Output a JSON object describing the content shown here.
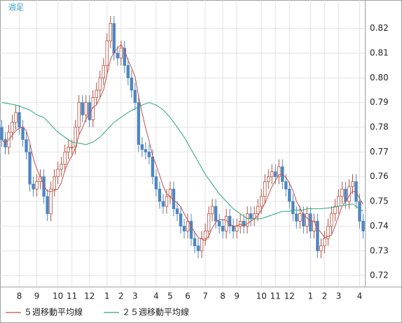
{
  "chart_data": {
    "type": "candlestick",
    "title": "週足",
    "categories": [
      null,
      null,
      null,
      null,
      null,
      "8",
      null,
      null,
      null,
      null,
      "9",
      null,
      null,
      null,
      null,
      null,
      "10",
      null,
      null,
      null,
      "11",
      null,
      null,
      null,
      null,
      "12",
      null,
      null,
      null,
      null,
      "1",
      null,
      null,
      null,
      "2",
      null,
      null,
      null,
      "3",
      null,
      null,
      null,
      null,
      null,
      "4",
      null,
      null,
      null,
      "5",
      null,
      null,
      null,
      null,
      "6",
      null,
      null,
      null,
      null,
      "7",
      null,
      null,
      null,
      null,
      "8",
      null,
      null,
      null,
      "9",
      null,
      null,
      null,
      null,
      null,
      null,
      "10",
      null,
      null,
      null,
      "11",
      null,
      null,
      null,
      "12",
      null,
      null,
      null,
      null,
      null,
      "1",
      null,
      null,
      null,
      "2",
      null,
      null,
      null,
      "3",
      null,
      null,
      null,
      null,
      null,
      "4",
      null
    ],
    "open": [
      0.78,
      0.775,
      0.772,
      0.778,
      0.782,
      0.786,
      0.78,
      0.775,
      0.77,
      0.757,
      0.755,
      0.758,
      0.76,
      0.752,
      0.745,
      0.755,
      0.76,
      0.763,
      0.765,
      0.77,
      0.772,
      0.772,
      0.78,
      0.79,
      0.785,
      0.79,
      0.783,
      0.792,
      0.795,
      0.8,
      0.805,
      0.815,
      0.822,
      0.81,
      0.808,
      0.812,
      0.805,
      0.8,
      0.795,
      0.79,
      0.773,
      0.771,
      0.77,
      0.768,
      0.76,
      0.755,
      0.75,
      0.748,
      0.752,
      0.755,
      0.747,
      0.745,
      0.74,
      0.738,
      0.742,
      0.735,
      0.732,
      0.73,
      0.735,
      0.738,
      0.745,
      0.748,
      0.742,
      0.74,
      0.738,
      0.744,
      0.74,
      0.738,
      0.74,
      0.742,
      0.74,
      0.745,
      0.743,
      0.745,
      0.748,
      0.752,
      0.758,
      0.76,
      0.762,
      0.76,
      0.764,
      0.758,
      0.755,
      0.75,
      0.745,
      0.742,
      0.745,
      0.74,
      0.745,
      0.738,
      0.742,
      0.73,
      0.732,
      0.735,
      0.74,
      0.745,
      0.748,
      0.752,
      0.755,
      0.75,
      0.756,
      0.758,
      0.75,
      0.742
    ],
    "high": [
      0.783,
      0.778,
      0.781,
      0.785,
      0.789,
      0.789,
      0.783,
      0.778,
      0.773,
      0.76,
      0.761,
      0.763,
      0.763,
      0.755,
      0.758,
      0.763,
      0.766,
      0.768,
      0.773,
      0.775,
      0.775,
      0.783,
      0.793,
      0.793,
      0.793,
      0.793,
      0.795,
      0.798,
      0.803,
      0.808,
      0.818,
      0.825,
      0.825,
      0.813,
      0.815,
      0.815,
      0.808,
      0.803,
      0.798,
      0.793,
      0.776,
      0.774,
      0.773,
      0.771,
      0.763,
      0.758,
      0.753,
      0.755,
      0.758,
      0.758,
      0.75,
      0.748,
      0.743,
      0.745,
      0.745,
      0.738,
      0.735,
      0.738,
      0.741,
      0.748,
      0.751,
      0.751,
      0.745,
      0.743,
      0.747,
      0.747,
      0.743,
      0.743,
      0.745,
      0.745,
      0.748,
      0.748,
      0.748,
      0.751,
      0.755,
      0.761,
      0.763,
      0.765,
      0.765,
      0.767,
      0.767,
      0.761,
      0.758,
      0.753,
      0.748,
      0.748,
      0.748,
      0.748,
      0.748,
      0.745,
      0.745,
      0.735,
      0.738,
      0.743,
      0.748,
      0.751,
      0.755,
      0.758,
      0.758,
      0.759,
      0.761,
      0.761,
      0.753,
      0.745
    ],
    "low": [
      0.772,
      0.769,
      0.769,
      0.775,
      0.779,
      0.777,
      0.772,
      0.767,
      0.754,
      0.752,
      0.752,
      0.755,
      0.749,
      0.742,
      0.742,
      0.752,
      0.757,
      0.76,
      0.762,
      0.767,
      0.769,
      0.769,
      0.777,
      0.782,
      0.782,
      0.78,
      0.78,
      0.789,
      0.792,
      0.797,
      0.802,
      0.812,
      0.807,
      0.805,
      0.805,
      0.802,
      0.797,
      0.792,
      0.787,
      0.77,
      0.768,
      0.767,
      0.765,
      0.757,
      0.752,
      0.747,
      0.745,
      0.745,
      0.749,
      0.744,
      0.742,
      0.737,
      0.735,
      0.735,
      0.732,
      0.729,
      0.727,
      0.727,
      0.732,
      0.735,
      0.742,
      0.739,
      0.737,
      0.735,
      0.735,
      0.737,
      0.735,
      0.735,
      0.737,
      0.737,
      0.737,
      0.74,
      0.74,
      0.742,
      0.745,
      0.749,
      0.755,
      0.757,
      0.757,
      0.757,
      0.755,
      0.752,
      0.747,
      0.742,
      0.739,
      0.739,
      0.737,
      0.737,
      0.735,
      0.735,
      0.727,
      0.727,
      0.729,
      0.732,
      0.737,
      0.742,
      0.745,
      0.749,
      0.747,
      0.747,
      0.753,
      0.747,
      0.739,
      0.735
    ],
    "close": [
      0.775,
      0.772,
      0.778,
      0.782,
      0.786,
      0.78,
      0.775,
      0.77,
      0.757,
      0.755,
      0.758,
      0.76,
      0.752,
      0.745,
      0.755,
      0.76,
      0.763,
      0.765,
      0.77,
      0.772,
      0.772,
      0.78,
      0.79,
      0.785,
      0.79,
      0.783,
      0.792,
      0.795,
      0.8,
      0.805,
      0.815,
      0.822,
      0.81,
      0.808,
      0.812,
      0.805,
      0.8,
      0.795,
      0.79,
      0.773,
      0.771,
      0.77,
      0.768,
      0.76,
      0.755,
      0.75,
      0.748,
      0.752,
      0.755,
      0.747,
      0.745,
      0.74,
      0.738,
      0.742,
      0.735,
      0.732,
      0.73,
      0.735,
      0.738,
      0.745,
      0.748,
      0.742,
      0.74,
      0.738,
      0.744,
      0.74,
      0.738,
      0.74,
      0.742,
      0.74,
      0.745,
      0.743,
      0.745,
      0.748,
      0.752,
      0.758,
      0.76,
      0.762,
      0.76,
      0.764,
      0.758,
      0.755,
      0.75,
      0.745,
      0.742,
      0.745,
      0.74,
      0.745,
      0.738,
      0.742,
      0.73,
      0.732,
      0.735,
      0.74,
      0.745,
      0.748,
      0.752,
      0.755,
      0.75,
      0.756,
      0.758,
      0.75,
      0.742,
      0.738
    ],
    "up_color": "#b2503f",
    "down_color": "#4f86c2",
    "series": [
      {
        "name": "５週移動平均線",
        "color": "#c0504d",
        "values": [
          0.775,
          0.7735,
          0.775,
          0.7768,
          0.7786,
          0.7796,
          0.7802,
          0.7786,
          0.7736,
          0.7674,
          0.763,
          0.76,
          0.7564,
          0.754,
          0.754,
          0.7544,
          0.755,
          0.7576,
          0.7626,
          0.766,
          0.7684,
          0.7718,
          0.7768,
          0.7798,
          0.7834,
          0.7856,
          0.788,
          0.789,
          0.792,
          0.795,
          0.8014,
          0.8074,
          0.8104,
          0.812,
          0.8134,
          0.8114,
          0.807,
          0.804,
          0.8004,
          0.7926,
          0.7858,
          0.7798,
          0.7744,
          0.7684,
          0.7648,
          0.7606,
          0.7562,
          0.753,
          0.752,
          0.7504,
          0.7494,
          0.7478,
          0.745,
          0.7424,
          0.74,
          0.7374,
          0.7354,
          0.7348,
          0.734,
          0.736,
          0.7392,
          0.7416,
          0.7426,
          0.7426,
          0.7424,
          0.7408,
          0.74,
          0.74,
          0.7408,
          0.74,
          0.741,
          0.742,
          0.743,
          0.7442,
          0.7466,
          0.7492,
          0.7526,
          0.756,
          0.7584,
          0.7608,
          0.7608,
          0.7598,
          0.7574,
          0.7544,
          0.75,
          0.7474,
          0.7444,
          0.7434,
          0.742,
          0.742,
          0.739,
          0.7374,
          0.7354,
          0.7358,
          0.7364,
          0.74,
          0.744,
          0.748,
          0.75,
          0.7522,
          0.7542,
          0.7538,
          0.7512,
          0.7488
        ]
      },
      {
        "name": "２５週移動平均線",
        "color": "#2aa77a",
        "values": [
          0.79,
          0.7898,
          0.7895,
          0.7893,
          0.789,
          0.7885,
          0.788,
          0.7875,
          0.787,
          0.786,
          0.785,
          0.7845,
          0.784,
          0.7825,
          0.781,
          0.7795,
          0.778,
          0.777,
          0.776,
          0.775,
          0.774,
          0.7738,
          0.7735,
          0.7733,
          0.773,
          0.7735,
          0.774,
          0.775,
          0.776,
          0.7775,
          0.779,
          0.7805,
          0.782,
          0.783,
          0.784,
          0.785,
          0.786,
          0.7868,
          0.7875,
          0.7883,
          0.789,
          0.7895,
          0.79,
          0.7895,
          0.789,
          0.788,
          0.787,
          0.7855,
          0.784,
          0.782,
          0.78,
          0.778,
          0.776,
          0.7735,
          0.771,
          0.7685,
          0.766,
          0.7635,
          0.761,
          0.759,
          0.757,
          0.755,
          0.753,
          0.7515,
          0.75,
          0.7485,
          0.747,
          0.746,
          0.745,
          0.744,
          0.743,
          0.743,
          0.743,
          0.743,
          0.743,
          0.7435,
          0.744,
          0.7445,
          0.745,
          0.7455,
          0.746,
          0.746,
          0.746,
          0.7465,
          0.7465,
          0.7465,
          0.7465,
          0.747,
          0.747,
          0.747,
          0.747,
          0.747,
          0.7472,
          0.7473,
          0.7475,
          0.7478,
          0.748,
          0.7483,
          0.7485,
          0.7488,
          0.749,
          0.748,
          0.747,
          0.746
        ]
      }
    ],
    "ylim": [
      0.7155,
      0.8315
    ],
    "yticks": [
      0.72,
      0.73,
      0.74,
      0.75,
      0.76,
      0.77,
      0.78,
      0.79,
      {
        "value": 0.8,
        "label": "0.80"
      },
      0.81,
      0.82
    ],
    "grid": true
  }
}
